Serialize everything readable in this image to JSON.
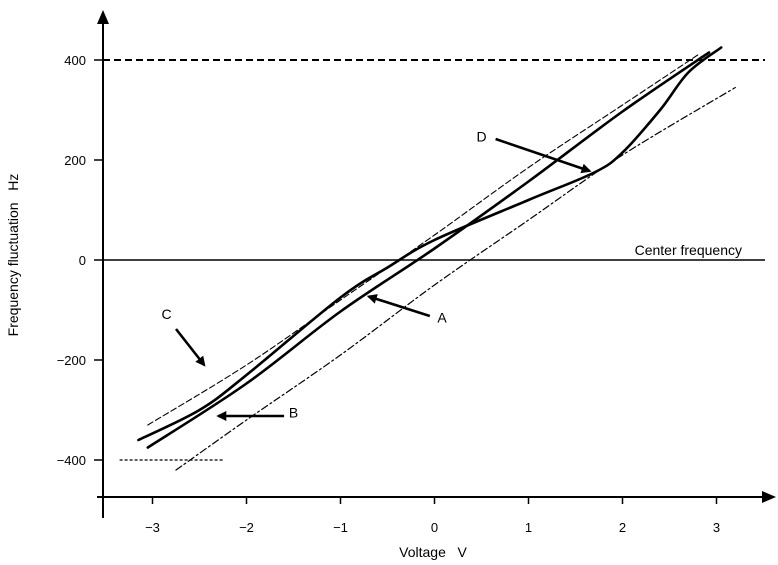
{
  "chart_data": {
    "type": "line",
    "xlabel": "Voltage   V",
    "ylabel": "Frequency fluctuation   Hz",
    "xlim": [
      -3.5,
      3.6
    ],
    "ylim": [
      -430,
      450
    ],
    "x_ticks": [
      -3,
      -2,
      -1,
      0,
      1,
      2,
      3
    ],
    "x_tick_labels": [
      "−3",
      "−2",
      "−1",
      "0",
      "1",
      "2",
      "3"
    ],
    "y_ticks": [
      400,
      200,
      0,
      -200,
      -400
    ],
    "y_tick_labels": [
      "400",
      "200",
      "0",
      "−200",
      "−400"
    ],
    "grid": false,
    "reference_lines": [
      {
        "name": "upper-limit",
        "axis": "y",
        "value": 400,
        "style": "dashed",
        "x_range": [
          -3.5,
          3.6
        ]
      },
      {
        "name": "center-frequency",
        "axis": "y",
        "value": 0,
        "style": "solid",
        "label": "Center frequency",
        "x_range": [
          -3.5,
          3.6
        ]
      },
      {
        "name": "lower-limit",
        "axis": "y",
        "value": -400,
        "style": "dashed-short",
        "x_range": [
          -3.35,
          -2.25
        ]
      }
    ],
    "series": [
      {
        "name": "A",
        "style": "thick",
        "x": [
          -3.05,
          -2.0,
          -1.0,
          0.0,
          1.0,
          2.0,
          2.92
        ],
        "y": [
          -375,
          -247,
          -103,
          23,
          157,
          297,
          415
        ]
      },
      {
        "name": "B",
        "style": "dash-dot",
        "x": [
          -2.75,
          -2.0,
          -1.0,
          0.0,
          1.0,
          2.0,
          3.2
        ],
        "y": [
          -420,
          -320,
          -190,
          -50,
          80,
          210,
          345
        ]
      },
      {
        "name": "C",
        "style": "thin-dashed",
        "x": [
          -3.05,
          -2.0,
          -1.0,
          0.0,
          1.0,
          2.0,
          2.8
        ],
        "y": [
          -330,
          -210,
          -80,
          50,
          185,
          310,
          410
        ]
      },
      {
        "name": "D",
        "style": "thick",
        "x": [
          -3.15,
          -2.5,
          -2.0,
          -1.0,
          -0.5,
          0.0,
          1.0,
          1.7,
          2.0,
          2.4,
          2.7,
          3.05
        ],
        "y": [
          -360,
          -300,
          -230,
          -75,
          -15,
          40,
          120,
          175,
          215,
          300,
          375,
          425
        ]
      }
    ],
    "annotations": [
      {
        "text": "A",
        "label_at": [
          0.08,
          -115
        ],
        "arrow_from": [
          -0.05,
          -112
        ],
        "arrow_to": [
          -0.7,
          -73
        ]
      },
      {
        "text": "B",
        "label_at": [
          -1.5,
          -305
        ],
        "arrow_from": [
          -1.6,
          -312
        ],
        "arrow_to": [
          -2.3,
          -312
        ]
      },
      {
        "text": "C",
        "label_at": [
          -2.85,
          -108
        ],
        "arrow_from": [
          -2.75,
          -138
        ],
        "arrow_to": [
          -2.45,
          -210
        ]
      },
      {
        "text": "D",
        "label_at": [
          0.5,
          247
        ],
        "arrow_from": [
          0.65,
          242
        ],
        "arrow_to": [
          1.65,
          178
        ]
      },
      {
        "text": "Center frequency",
        "label_at": [
          1.9,
          20
        ]
      }
    ]
  }
}
